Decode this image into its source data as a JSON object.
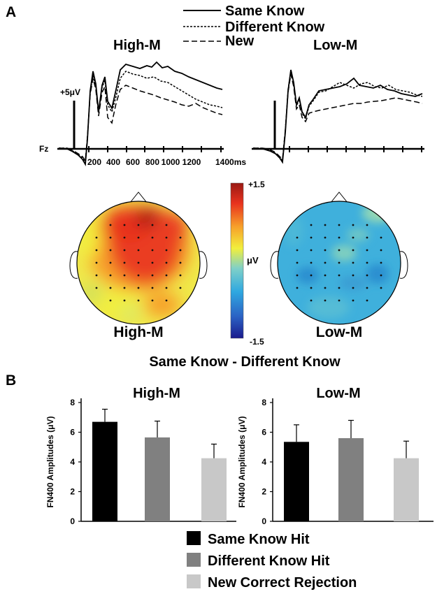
{
  "panel_a": {
    "label": "A",
    "legend": [
      "Same Know",
      "Different Know",
      "New"
    ],
    "erp_titles": [
      "High-M",
      "Low-M"
    ],
    "electrode": "Fz",
    "scale_label": "+5μV",
    "time_ticks": [
      "200",
      "400",
      "600",
      "800",
      "1000",
      "1200",
      "1400ms"
    ],
    "topo_titles": [
      "High-M",
      "Low-M"
    ],
    "colorbar": {
      "max": "+1.5",
      "min": "-1.5",
      "unit": "μV"
    },
    "contrast_label": "Same Know - Different Know"
  },
  "panel_b": {
    "label": "B",
    "legend": [
      "Same Know Hit",
      "Different Know Hit",
      "New Correct Rejection"
    ]
  },
  "colors": {
    "same_know": "#000000",
    "different_know": "#808080",
    "new_cr": "#c8c8c8",
    "colormap": [
      "#1a1a8c",
      "#2b62c4",
      "#2fa8e0",
      "#7fd0c8",
      "#f2ef3c",
      "#f7a02a",
      "#e8321e",
      "#9a1a14"
    ]
  },
  "chart_data": [
    {
      "type": "bar",
      "title": "High-M",
      "ylabel": "FN400 Amplitudes (μV)",
      "xlabel": "",
      "ylim": [
        0,
        8
      ],
      "yticks": [
        0,
        2,
        4,
        6,
        8
      ],
      "categories": [
        "Same Know Hit",
        "Different Know Hit",
        "New Correct Rejection"
      ],
      "values": [
        6.7,
        5.65,
        4.25
      ],
      "errors": [
        0.85,
        1.1,
        0.95
      ]
    },
    {
      "type": "bar",
      "title": "Low-M",
      "ylabel": "FN400 Amplitudes (μV)",
      "xlabel": "",
      "ylim": [
        0,
        8
      ],
      "yticks": [
        0,
        2,
        4,
        6,
        8
      ],
      "categories": [
        "Same Know Hit",
        "Different Know Hit",
        "New Correct Rejection"
      ],
      "values": [
        5.35,
        5.6,
        4.25
      ],
      "errors": [
        1.15,
        1.2,
        1.15
      ]
    }
  ]
}
